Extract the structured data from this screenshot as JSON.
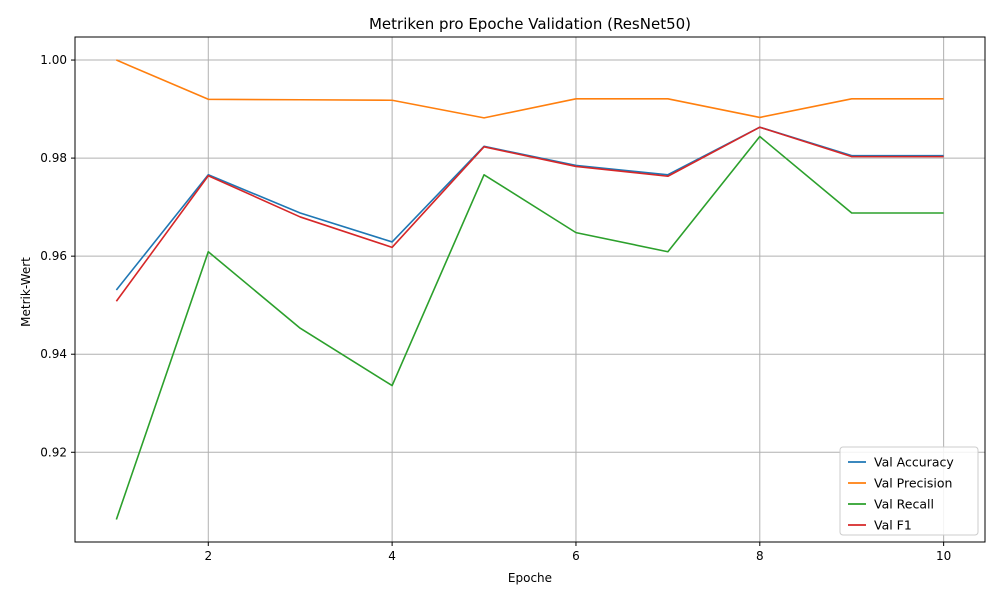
{
  "chart_data": {
    "type": "line",
    "title": "Metriken pro Epoche Validation (ResNet50)",
    "xlabel": "Epoche",
    "ylabel": "Metrik-Wert",
    "x": [
      1,
      2,
      3,
      4,
      5,
      6,
      7,
      8,
      9,
      10
    ],
    "xlim": [
      0.55,
      10.45
    ],
    "ylim": [
      0.9017,
      1.0047
    ],
    "xticks": [
      2,
      4,
      6,
      8,
      10
    ],
    "yticks": [
      0.92,
      0.94,
      0.96,
      0.98,
      1.0
    ],
    "ytick_labels": [
      "0.92",
      "0.94",
      "0.96",
      "0.98",
      "1.00"
    ],
    "grid": true,
    "legend_position": "lower-right",
    "series": [
      {
        "name": "Val Accuracy",
        "color": "#1f77b4",
        "values": [
          0.9531,
          0.9766,
          0.9688,
          0.9629,
          0.9824,
          0.9785,
          0.9766,
          0.9863,
          0.9805,
          0.9805
        ]
      },
      {
        "name": "Val Precision",
        "color": "#ff7f0e",
        "values": [
          1.0,
          0.992,
          0.9919,
          0.9918,
          0.9882,
          0.9921,
          0.9921,
          0.9883,
          0.9921,
          0.9921
        ]
      },
      {
        "name": "Val Recall",
        "color": "#2ca02c",
        "values": [
          0.9063,
          0.9609,
          0.9453,
          0.9336,
          0.9766,
          0.9648,
          0.9609,
          0.9844,
          0.9688,
          0.9688
        ]
      },
      {
        "name": "Val F1",
        "color": "#d62728",
        "values": [
          0.9508,
          0.9764,
          0.968,
          0.9618,
          0.9823,
          0.9783,
          0.9763,
          0.9863,
          0.9803,
          0.9803
        ]
      }
    ]
  }
}
